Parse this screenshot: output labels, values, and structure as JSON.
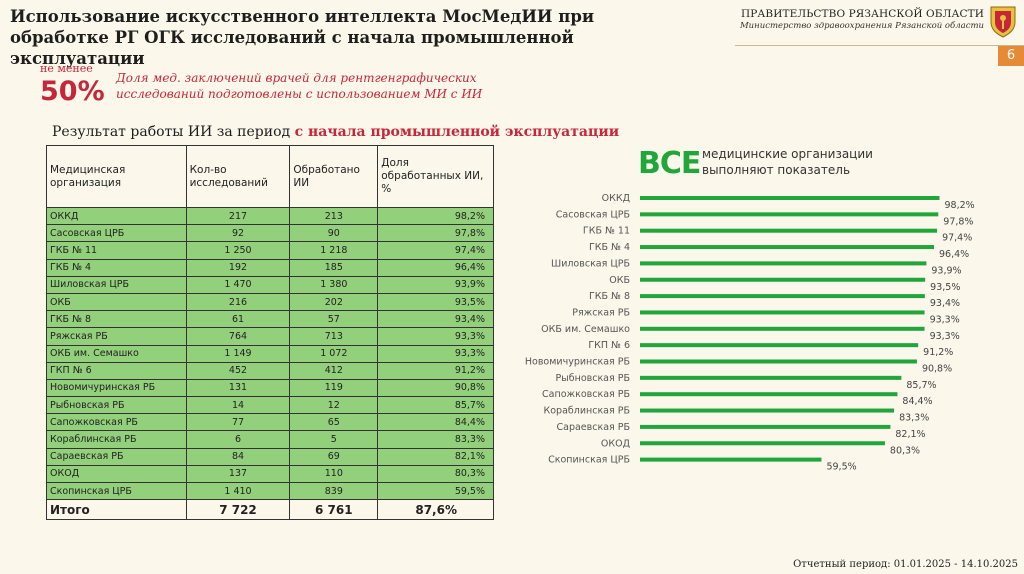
{
  "header": {
    "title": "Использование искусственного интеллекта МосМедИИ при обработке РГ ОГК исследований с начала промышленной эксплуатации",
    "gov_name": "ПРАВИТЕЛЬСТВО РЯЗАНСКОЙ ОБЛАСТИ",
    "gov_sub": "Министерство здравоохранения Рязанской области",
    "page_number": "6"
  },
  "colors": {
    "accent_red": "#c6263a",
    "table_green": "#93d07b",
    "bar_green": "#20a63a",
    "badge_orange": "#e58a36"
  },
  "summary": {
    "min_label": "не менее",
    "min_value": "50%",
    "description": "Доля мед. заключений врачей для рентгенграфических исследований подготовлены с использованием МИ с ИИ"
  },
  "table": {
    "caption_prefix": "Результат работы ИИ за период",
    "caption_highlight": "с  начала промышленной эксплуатации",
    "headers": [
      "Медицинская организация",
      "Кол-во исследований",
      "Обработано ИИ",
      "Доля обработанных ИИ, %"
    ],
    "rows": [
      [
        "ОККД",
        "217",
        "213",
        "98,2%"
      ],
      [
        "Сасовская ЦРБ",
        "92",
        "90",
        "97,8%"
      ],
      [
        "ГКБ № 11",
        "1 250",
        "1 218",
        "97,4%"
      ],
      [
        "ГКБ № 4",
        "192",
        "185",
        "96,4%"
      ],
      [
        "Шиловская ЦРБ",
        "1 470",
        "1 380",
        "93,9%"
      ],
      [
        "ОКБ",
        "216",
        "202",
        "93,5%"
      ],
      [
        "ГКБ № 8",
        "61",
        "57",
        "93,4%"
      ],
      [
        "Ряжская РБ",
        "764",
        "713",
        "93,3%"
      ],
      [
        "ОКБ им. Семашко",
        "1 149",
        "1 072",
        "93,3%"
      ],
      [
        "ГКП № 6",
        "452",
        "412",
        "91,2%"
      ],
      [
        "Новомичуринская РБ",
        "131",
        "119",
        "90,8%"
      ],
      [
        "Рыбновская РБ",
        "14",
        "12",
        "85,7%"
      ],
      [
        "Сапожковская РБ",
        "77",
        "65",
        "84,4%"
      ],
      [
        "Кораблинская РБ",
        "6",
        "5",
        "83,3%"
      ],
      [
        "Сараевская РБ",
        "84",
        "69",
        "82,1%"
      ],
      [
        "ОКОД",
        "137",
        "110",
        "80,3%"
      ],
      [
        "Скопинская ЦРБ",
        "1 410",
        "839",
        "59,5%"
      ]
    ],
    "total": [
      "Итого",
      "7 722",
      "6 761",
      "87,6%"
    ]
  },
  "all_orgs": {
    "big": "ВСЕ",
    "text": "медицинские организации выполняют показатель"
  },
  "chart_data": {
    "type": "bar",
    "orientation": "horizontal",
    "categories": [
      "ОККД",
      "Сасовская ЦРБ",
      "ГКБ № 11",
      "ГКБ № 4",
      "Шиловская ЦРБ",
      "ОКБ",
      "ГКБ № 8",
      "Ряжская РБ",
      "ОКБ им. Семашко",
      "ГКП № 6",
      "Новомичуринская РБ",
      "Рыбновская РБ",
      "Сапожковская РБ",
      "Кораблинская РБ",
      "Сараевская РБ",
      "ОКОД",
      "Скопинская ЦРБ"
    ],
    "values": [
      98.2,
      97.8,
      97.4,
      96.4,
      93.9,
      93.5,
      93.4,
      93.3,
      93.3,
      91.2,
      90.8,
      85.7,
      84.4,
      83.3,
      82.1,
      80.3,
      59.5
    ],
    "labels": [
      "98,2%",
      "97,8%",
      "97,4%",
      "96,4%",
      "93,9%",
      "93,5%",
      "93,4%",
      "93,3%",
      "93,3%",
      "91,2%",
      "90,8%",
      "85,7%",
      "84,4%",
      "83,3%",
      "82,1%",
      "80,3%",
      "59,5%"
    ],
    "xlim": [
      0,
      100
    ],
    "grid": false,
    "legend": "none"
  },
  "footer": {
    "period": "Отчетный период: 01.01.2025 - 14.10.2025"
  }
}
